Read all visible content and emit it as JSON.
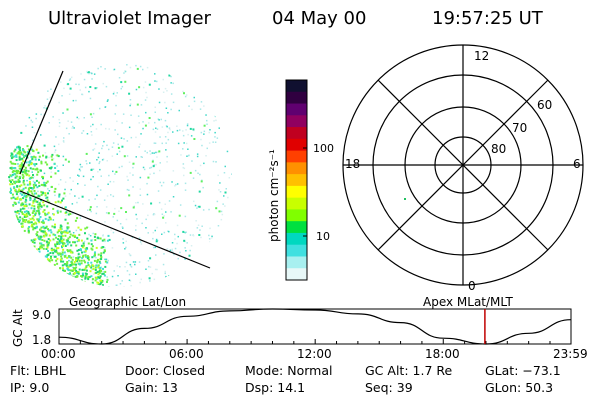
{
  "header": {
    "instrument": "Ultraviolet Imager",
    "date": "04 May 00",
    "time": "19:57:25 UT"
  },
  "colorbar": {
    "label": "photon cm⁻²s⁻¹",
    "ticks": [
      "100",
      "10"
    ],
    "colors": [
      "#101030",
      "#300040",
      "#600070",
      "#900060",
      "#c00020",
      "#e00000",
      "#ff4000",
      "#ff9000",
      "#ffc000",
      "#ffff00",
      "#c8ff00",
      "#80ff00",
      "#00e040",
      "#00d8c0",
      "#40e0e0",
      "#a8f0f0",
      "#e8f8f8"
    ]
  },
  "polar_grid": {
    "mlt_labels": [
      "12",
      "18",
      "6",
      "0"
    ],
    "mlat_labels": [
      "60",
      "70",
      "80"
    ]
  },
  "orbit_plot": {
    "left_label": "Geographic Lat/Lon",
    "right_label": "Apex MLat/MLT",
    "ylabel": "GC Alt",
    "ytick_top": "9.0",
    "ytick_bottom": "1.8",
    "xticks": [
      "00:00",
      "06:00",
      "12:00",
      "18:00",
      "23:59"
    ],
    "marker_color": "#c00000"
  },
  "chart_data": {
    "type": "line",
    "title": "",
    "xlabel": "",
    "ylabel": "GC Alt",
    "x": [
      "00:00",
      "02:00",
      "04:00",
      "06:00",
      "08:00",
      "10:00",
      "12:00",
      "14:00",
      "16:00",
      "18:00",
      "20:00",
      "22:00",
      "23:59"
    ],
    "series": [
      {
        "values": [
          3.2,
          1.8,
          5.0,
          7.5,
          8.6,
          9.0,
          8.8,
          8.0,
          6.2,
          3.0,
          1.8,
          4.0,
          6.8
        ]
      }
    ],
    "ylim": [
      1.8,
      9.0
    ],
    "marker_time": "19:57"
  },
  "footer": {
    "row1": [
      {
        "label": "Flt:",
        "value": "LBHL"
      },
      {
        "label": "Door:",
        "value": "Closed"
      },
      {
        "label": "Mode:",
        "value": "Normal"
      },
      {
        "label": "GC Alt:",
        "value": "1.7 Re"
      },
      {
        "label": "GLat:",
        "value": "−73.1"
      }
    ],
    "row2": [
      {
        "label": "IP:",
        "value": "9.0"
      },
      {
        "label": "Gain:",
        "value": "13"
      },
      {
        "label": "Dsp:",
        "value": "14.1"
      },
      {
        "label": "Seq:",
        "value": "39"
      },
      {
        "label": "GLon:",
        "value": "50.3"
      }
    ]
  }
}
